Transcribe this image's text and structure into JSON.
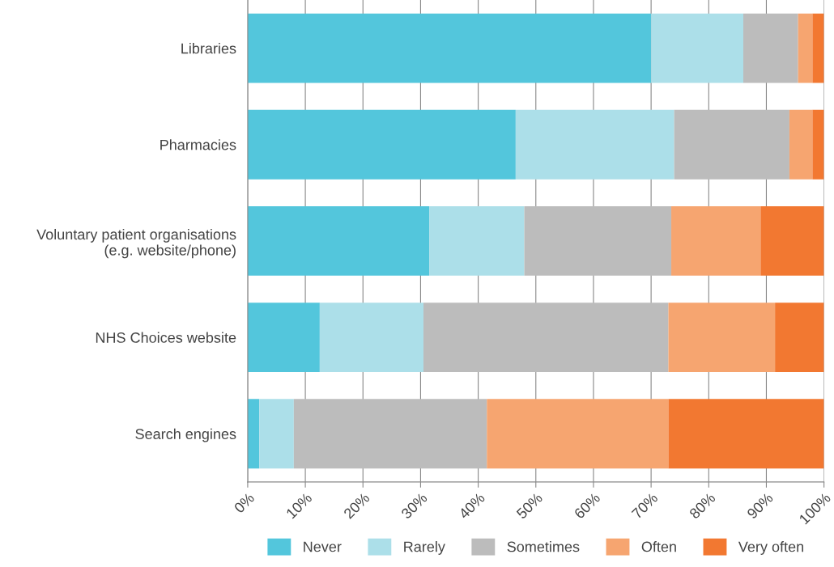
{
  "chart_data": {
    "type": "bar",
    "orientation": "horizontal",
    "stacked": true,
    "categories": [
      "Libraries",
      "Pharmacies",
      "Voluntary patient organisations\n(e.g. website/phone)",
      "NHS Choices website",
      "Search engines"
    ],
    "series": [
      {
        "name": "Never",
        "color": "#53c6dc",
        "values": [
          70,
          46.5,
          31.5,
          12.5,
          2
        ]
      },
      {
        "name": "Rarely",
        "color": "#acdfe9",
        "values": [
          16,
          27.5,
          16.5,
          18,
          6
        ]
      },
      {
        "name": "Sometimes",
        "color": "#bcbcbc",
        "values": [
          9.5,
          20,
          25.5,
          42.5,
          33.5
        ]
      },
      {
        "name": "Often",
        "color": "#f6a570",
        "values": [
          2.5,
          4,
          15.5,
          18.5,
          31.5
        ]
      },
      {
        "name": "Very often",
        "color": "#f27831",
        "values": [
          2,
          2,
          11,
          8.5,
          27
        ]
      }
    ],
    "xlim": [
      0,
      100
    ],
    "xticks": [
      {
        "value": 0,
        "label": "0%"
      },
      {
        "value": 10,
        "label": "10%"
      },
      {
        "value": 20,
        "label": "20%"
      },
      {
        "value": 30,
        "label": "30%"
      },
      {
        "value": 40,
        "label": "40%"
      },
      {
        "value": 50,
        "label": "50%"
      },
      {
        "value": 60,
        "label": "60%"
      },
      {
        "value": 70,
        "label": "70%"
      },
      {
        "value": 80,
        "label": "80%"
      },
      {
        "value": 90,
        "label": "90%"
      },
      {
        "value": 100,
        "label": "100%"
      }
    ],
    "grid": "x",
    "legend": "bottom"
  }
}
